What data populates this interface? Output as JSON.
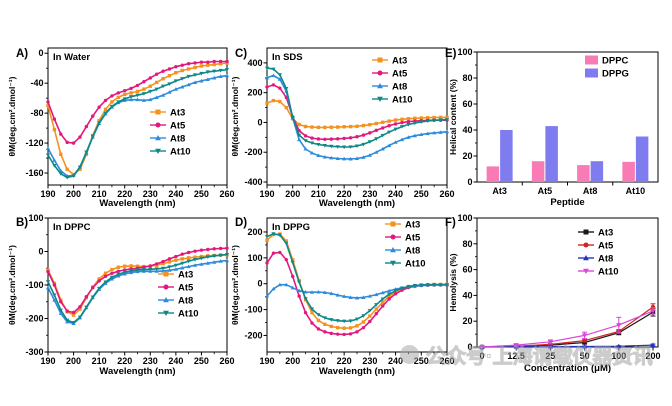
{
  "figure": {
    "background": "#ffffff",
    "watermark": {
      "text": "公众号·上海谓载仪器资讯",
      "color": "#a3a3a3"
    }
  },
  "chart_data": [
    {
      "id": "A",
      "panel_label": "A)",
      "type": "line",
      "inner_title": "In Water",
      "xlabel": "Wavelength (nm)",
      "ylabel": "θM(deg.cm².dmol⁻¹)",
      "xlim": [
        190,
        260
      ],
      "ylim": [
        -176,
        7
      ],
      "xticks": [
        190,
        200,
        210,
        220,
        230,
        240,
        250,
        260
      ],
      "yticks": [
        0,
        -40,
        -80,
        -120,
        -160
      ],
      "legend_position": "middle-right",
      "grid": false,
      "x": [
        190,
        192.5,
        195,
        197.5,
        200,
        202.5,
        205,
        207.5,
        210,
        212.5,
        215,
        217.5,
        220,
        222.5,
        225,
        227.5,
        230,
        232.5,
        235,
        237.5,
        240,
        242.5,
        245,
        247.5,
        250,
        252.5,
        255,
        257.5,
        260
      ],
      "series": [
        {
          "name": "At3",
          "color": "#F5921E",
          "marker": "square",
          "values": [
            -70,
            -102,
            -135,
            -155,
            -162,
            -155,
            -135,
            -110,
            -90,
            -75,
            -65,
            -59,
            -55,
            -53,
            -51,
            -48,
            -44,
            -39,
            -34,
            -30,
            -26,
            -23,
            -21,
            -19,
            -17,
            -16,
            -15,
            -14,
            -13
          ]
        },
        {
          "name": "At5",
          "color": "#E2187D",
          "marker": "circle",
          "values": [
            -65,
            -88,
            -108,
            -119,
            -120,
            -112,
            -98,
            -84,
            -72,
            -63,
            -57,
            -53,
            -50,
            -47,
            -43,
            -38,
            -33,
            -28,
            -24,
            -21,
            -18,
            -16,
            -14,
            -13,
            -12,
            -12,
            -11,
            -11,
            -11
          ]
        },
        {
          "name": "At8",
          "color": "#2E8BDE",
          "marker": "triangle-up",
          "values": [
            -127,
            -143,
            -157,
            -164,
            -163,
            -152,
            -133,
            -112,
            -94,
            -81,
            -72,
            -66,
            -63,
            -62,
            -62,
            -63,
            -62,
            -59,
            -56,
            -52,
            -48,
            -45,
            -42,
            -39,
            -37,
            -35,
            -33,
            -31,
            -30
          ]
        },
        {
          "name": "At10",
          "color": "#0E8888",
          "marker": "triangle-down",
          "values": [
            -136,
            -150,
            -161,
            -166,
            -164,
            -152,
            -132,
            -111,
            -93,
            -80,
            -71,
            -65,
            -61,
            -58,
            -56,
            -54,
            -51,
            -48,
            -44,
            -41,
            -37,
            -34,
            -31,
            -29,
            -27,
            -25,
            -24,
            -23,
            -22
          ]
        }
      ]
    },
    {
      "id": "B",
      "panel_label": "B)",
      "type": "line",
      "inner_title": "In DPPC",
      "xlabel": "Wavelength (nm)",
      "ylabel": "θM(deg.cm².dmol⁻¹)",
      "xlim": [
        190,
        260
      ],
      "ylim": [
        -300,
        100
      ],
      "xticks": [
        190,
        200,
        210,
        220,
        230,
        240,
        250,
        260
      ],
      "yticks": [
        100,
        0,
        -100,
        -200,
        -300
      ],
      "legend_position": "middle-right",
      "grid": false,
      "x": [
        190,
        192.5,
        195,
        197.5,
        200,
        202.5,
        205,
        207.5,
        210,
        212.5,
        215,
        217.5,
        220,
        222.5,
        225,
        227.5,
        230,
        232.5,
        235,
        237.5,
        240,
        242.5,
        245,
        247.5,
        250,
        252.5,
        255,
        257.5,
        260
      ],
      "series": [
        {
          "name": "At3",
          "color": "#F5921E",
          "marker": "square",
          "values": [
            -55,
            -95,
            -145,
            -180,
            -190,
            -172,
            -138,
            -106,
            -82,
            -65,
            -54,
            -47,
            -44,
            -43,
            -44,
            -45,
            -44,
            -41,
            -36,
            -31,
            -26,
            -22,
            -19,
            -17,
            -15,
            -13,
            -12,
            -11,
            -10
          ]
        },
        {
          "name": "At5",
          "color": "#E2187D",
          "marker": "circle",
          "values": [
            -60,
            -100,
            -150,
            -178,
            -182,
            -165,
            -135,
            -108,
            -88,
            -74,
            -65,
            -59,
            -55,
            -52,
            -50,
            -47,
            -43,
            -37,
            -30,
            -22,
            -15,
            -8,
            -3,
            1,
            4,
            6,
            8,
            9,
            10
          ]
        },
        {
          "name": "At8",
          "color": "#2E8BDE",
          "marker": "triangle-up",
          "values": [
            -108,
            -145,
            -185,
            -210,
            -215,
            -198,
            -168,
            -138,
            -113,
            -95,
            -82,
            -73,
            -67,
            -63,
            -60,
            -59,
            -59,
            -59,
            -58,
            -56,
            -53,
            -49,
            -45,
            -41,
            -38,
            -35,
            -32,
            -29,
            -27
          ]
        },
        {
          "name": "At10",
          "color": "#0E8888",
          "marker": "triangle-down",
          "values": [
            -90,
            -130,
            -175,
            -205,
            -212,
            -196,
            -166,
            -136,
            -110,
            -91,
            -77,
            -68,
            -62,
            -58,
            -55,
            -54,
            -53,
            -52,
            -50,
            -46,
            -41,
            -35,
            -29,
            -24,
            -20,
            -16,
            -13,
            -11,
            -9
          ]
        }
      ]
    },
    {
      "id": "C",
      "panel_label": "C)",
      "type": "line",
      "inner_title": "In SDS",
      "xlabel": "Wavelength (nm)",
      "ylabel": "θM(deg.cm².dmol⁻¹)",
      "xlim": [
        190,
        260
      ],
      "ylim": [
        -420,
        500
      ],
      "xticks": [
        190,
        200,
        210,
        220,
        230,
        240,
        250,
        260
      ],
      "yticks": [
        400,
        200,
        0,
        -200,
        -400
      ],
      "legend_position": "top-right",
      "grid": false,
      "x": [
        190,
        192.5,
        195,
        197.5,
        200,
        202.5,
        205,
        207.5,
        210,
        212.5,
        215,
        217.5,
        220,
        222.5,
        225,
        227.5,
        230,
        232.5,
        235,
        237.5,
        240,
        242.5,
        245,
        247.5,
        250,
        252.5,
        255,
        257.5,
        260
      ],
      "series": [
        {
          "name": "At3",
          "color": "#F5921E",
          "marker": "square",
          "values": [
            130,
            147,
            140,
            100,
            25,
            -14,
            -27,
            -31,
            -33,
            -33,
            -32,
            -31,
            -29,
            -28,
            -26,
            -21,
            -15,
            -7,
            1,
            9,
            16,
            21,
            25,
            28,
            30,
            32,
            33,
            34,
            34
          ]
        },
        {
          "name": "At5",
          "color": "#E2187D",
          "marker": "circle",
          "values": [
            238,
            252,
            230,
            168,
            38,
            -55,
            -90,
            -105,
            -111,
            -113,
            -112,
            -110,
            -107,
            -103,
            -96,
            -85,
            -70,
            -53,
            -37,
            -22,
            -10,
            -1,
            5,
            9,
            12,
            14,
            15,
            15,
            15
          ]
        },
        {
          "name": "At8",
          "color": "#2E8BDE",
          "marker": "triangle-up",
          "values": [
            300,
            315,
            290,
            210,
            32,
            -115,
            -178,
            -205,
            -222,
            -232,
            -238,
            -242,
            -244,
            -245,
            -242,
            -234,
            -220,
            -200,
            -178,
            -155,
            -133,
            -115,
            -100,
            -89,
            -81,
            -75,
            -70,
            -66,
            -62
          ]
        },
        {
          "name": "At10",
          "color": "#0E8888",
          "marker": "triangle-down",
          "values": [
            365,
            358,
            320,
            228,
            32,
            -85,
            -122,
            -138,
            -148,
            -155,
            -160,
            -163,
            -165,
            -164,
            -158,
            -147,
            -130,
            -110,
            -87,
            -65,
            -45,
            -28,
            -14,
            -4,
            4,
            10,
            14,
            17,
            19
          ]
        }
      ]
    },
    {
      "id": "D",
      "panel_label": "D)",
      "type": "line",
      "inner_title": "In DPPG",
      "xlabel": "Wavelength (nm)",
      "ylabel": "θM(deg.cm².dmol⁻¹)",
      "xlim": [
        190,
        260
      ],
      "ylim": [
        -264,
        254
      ],
      "xticks": [
        190,
        200,
        210,
        220,
        230,
        240,
        250,
        260
      ],
      "yticks": [
        200,
        100,
        0,
        -100,
        -200
      ],
      "legend_position": "top-right",
      "grid": false,
      "x": [
        190,
        192.5,
        195,
        197.5,
        200,
        202.5,
        205,
        207.5,
        210,
        212.5,
        215,
        217.5,
        220,
        222.5,
        225,
        227.5,
        230,
        232.5,
        235,
        237.5,
        240,
        242.5,
        245,
        247.5,
        250,
        252.5,
        255,
        257.5,
        260
      ],
      "series": [
        {
          "name": "At3",
          "color": "#F5921E",
          "marker": "square",
          "values": [
            168,
            190,
            192,
            165,
            92,
            12,
            -62,
            -112,
            -142,
            -157,
            -165,
            -170,
            -172,
            -171,
            -163,
            -148,
            -125,
            -98,
            -72,
            -49,
            -31,
            -19,
            -11,
            -7,
            -5,
            -4,
            -3,
            -3,
            -3
          ]
        },
        {
          "name": "At5",
          "color": "#E2187D",
          "marker": "circle",
          "values": [
            80,
            118,
            121,
            93,
            28,
            -48,
            -112,
            -152,
            -175,
            -186,
            -192,
            -195,
            -196,
            -194,
            -186,
            -170,
            -146,
            -116,
            -86,
            -59,
            -39,
            -25,
            -15,
            -10,
            -7,
            -6,
            -5,
            -5,
            -5
          ]
        },
        {
          "name": "At8",
          "color": "#2E8BDE",
          "marker": "triangle-up",
          "values": [
            -48,
            -20,
            -4,
            -4,
            -16,
            -27,
            -32,
            -33,
            -32,
            -34,
            -38,
            -44,
            -49,
            -53,
            -55,
            -53,
            -48,
            -42,
            -35,
            -28,
            -21,
            -16,
            -12,
            -9,
            -7,
            -5,
            -4,
            -4,
            -4
          ]
        },
        {
          "name": "At10",
          "color": "#0E8888",
          "marker": "triangle-down",
          "values": [
            182,
            193,
            188,
            156,
            82,
            6,
            -58,
            -98,
            -120,
            -132,
            -139,
            -143,
            -145,
            -144,
            -137,
            -124,
            -104,
            -81,
            -59,
            -41,
            -27,
            -17,
            -11,
            -7,
            -5,
            -4,
            -4,
            -4,
            -4
          ]
        }
      ]
    },
    {
      "id": "E",
      "panel_label": "E)",
      "type": "bar",
      "xlabel": "Peptide",
      "ylabel": "Helical content (%)",
      "categories": [
        "At3",
        "At5",
        "At8",
        "At10"
      ],
      "ylim": [
        0,
        100
      ],
      "yticks": [
        0,
        20,
        40,
        60,
        80,
        100
      ],
      "legend_position": "top-right",
      "grid": false,
      "series": [
        {
          "name": "DPPC",
          "color": "#F87BB5",
          "values": [
            12,
            16,
            13,
            15.5
          ]
        },
        {
          "name": "DPPG",
          "color": "#7F7CF0",
          "values": [
            40,
            43,
            16,
            35
          ]
        }
      ]
    },
    {
      "id": "F",
      "panel_label": "F)",
      "type": "line-category",
      "xlabel": "Concentration (μM)",
      "ylabel": "Hemolysis (%)",
      "categories": [
        "0",
        "12.5",
        "25",
        "50",
        "100",
        "200"
      ],
      "ylim": [
        0,
        100
      ],
      "yticks": [
        0,
        20,
        40,
        60,
        80,
        100
      ],
      "legend_position": "top-right",
      "grid": false,
      "series": [
        {
          "name": "At3",
          "color": "#1A1A1A",
          "marker": "square",
          "values": [
            0,
            0.5,
            1.5,
            3.5,
            11,
            27
          ],
          "errors": [
            0.3,
            0.4,
            0.6,
            1,
            1.5,
            3
          ]
        },
        {
          "name": "At5",
          "color": "#D02622",
          "marker": "circle",
          "values": [
            0,
            0.6,
            2,
            5,
            12,
            31
          ],
          "errors": [
            0.3,
            0.4,
            0.6,
            1,
            1.5,
            2.5
          ]
        },
        {
          "name": "At8",
          "color": "#2633C4",
          "marker": "triangle-up",
          "values": [
            0,
            0.2,
            0.3,
            0.4,
            0.6,
            1.5
          ],
          "errors": [
            0.2,
            0.2,
            0.3,
            0.3,
            0.4,
            0.8
          ]
        },
        {
          "name": "At10",
          "color": "#DB46DB",
          "marker": "triangle-down",
          "values": [
            0,
            1.5,
            4,
            9,
            17,
            28
          ],
          "errors": [
            0.3,
            0.8,
            1.5,
            2.5,
            6,
            2.5
          ]
        }
      ]
    }
  ]
}
